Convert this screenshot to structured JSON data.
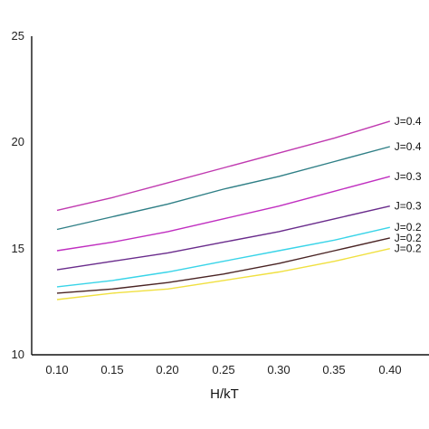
{
  "chart_data": {
    "type": "line",
    "title": "",
    "xlabel": "H/kT",
    "ylabel": "",
    "xlim": [
      0.08,
      0.42
    ],
    "ylim": [
      10,
      25
    ],
    "x_ticks": [
      "0.10",
      "0.15",
      "0.20",
      "0.25",
      "0.30",
      "0.35",
      "0.40"
    ],
    "y_ticks": [
      "10",
      "15",
      "20",
      "25"
    ],
    "grid": false,
    "legend": "inline labels at right end of each line",
    "x": [
      0.1,
      0.15,
      0.2,
      0.25,
      0.3,
      0.35,
      0.4
    ],
    "series": [
      {
        "name": "J=0.4",
        "color": "#c03ab0",
        "values": [
          16.8,
          17.4,
          18.1,
          18.8,
          19.5,
          20.2,
          21.0
        ]
      },
      {
        "name": "J=0.4",
        "color": "#2f7f86",
        "values": [
          15.9,
          16.5,
          17.1,
          17.8,
          18.4,
          19.1,
          19.8
        ]
      },
      {
        "name": "J=0.3",
        "color": "#c02fc0",
        "values": [
          14.9,
          15.3,
          15.8,
          16.4,
          17.0,
          17.7,
          18.4
        ]
      },
      {
        "name": "J=0.3",
        "color": "#6a2c8c",
        "values": [
          14.0,
          14.4,
          14.8,
          15.3,
          15.8,
          16.4,
          17.0
        ]
      },
      {
        "name": "J=0.2",
        "color": "#39d4e8",
        "values": [
          13.2,
          13.5,
          13.9,
          14.4,
          14.9,
          15.4,
          16.0
        ]
      },
      {
        "name": "J=0.2",
        "color": "#4a2424",
        "values": [
          12.9,
          13.1,
          13.4,
          13.8,
          14.3,
          14.9,
          15.5
        ]
      },
      {
        "name": "J=0.2",
        "color": "#f0e040",
        "values": [
          12.6,
          12.9,
          13.1,
          13.5,
          13.9,
          14.4,
          15.0
        ]
      }
    ]
  }
}
